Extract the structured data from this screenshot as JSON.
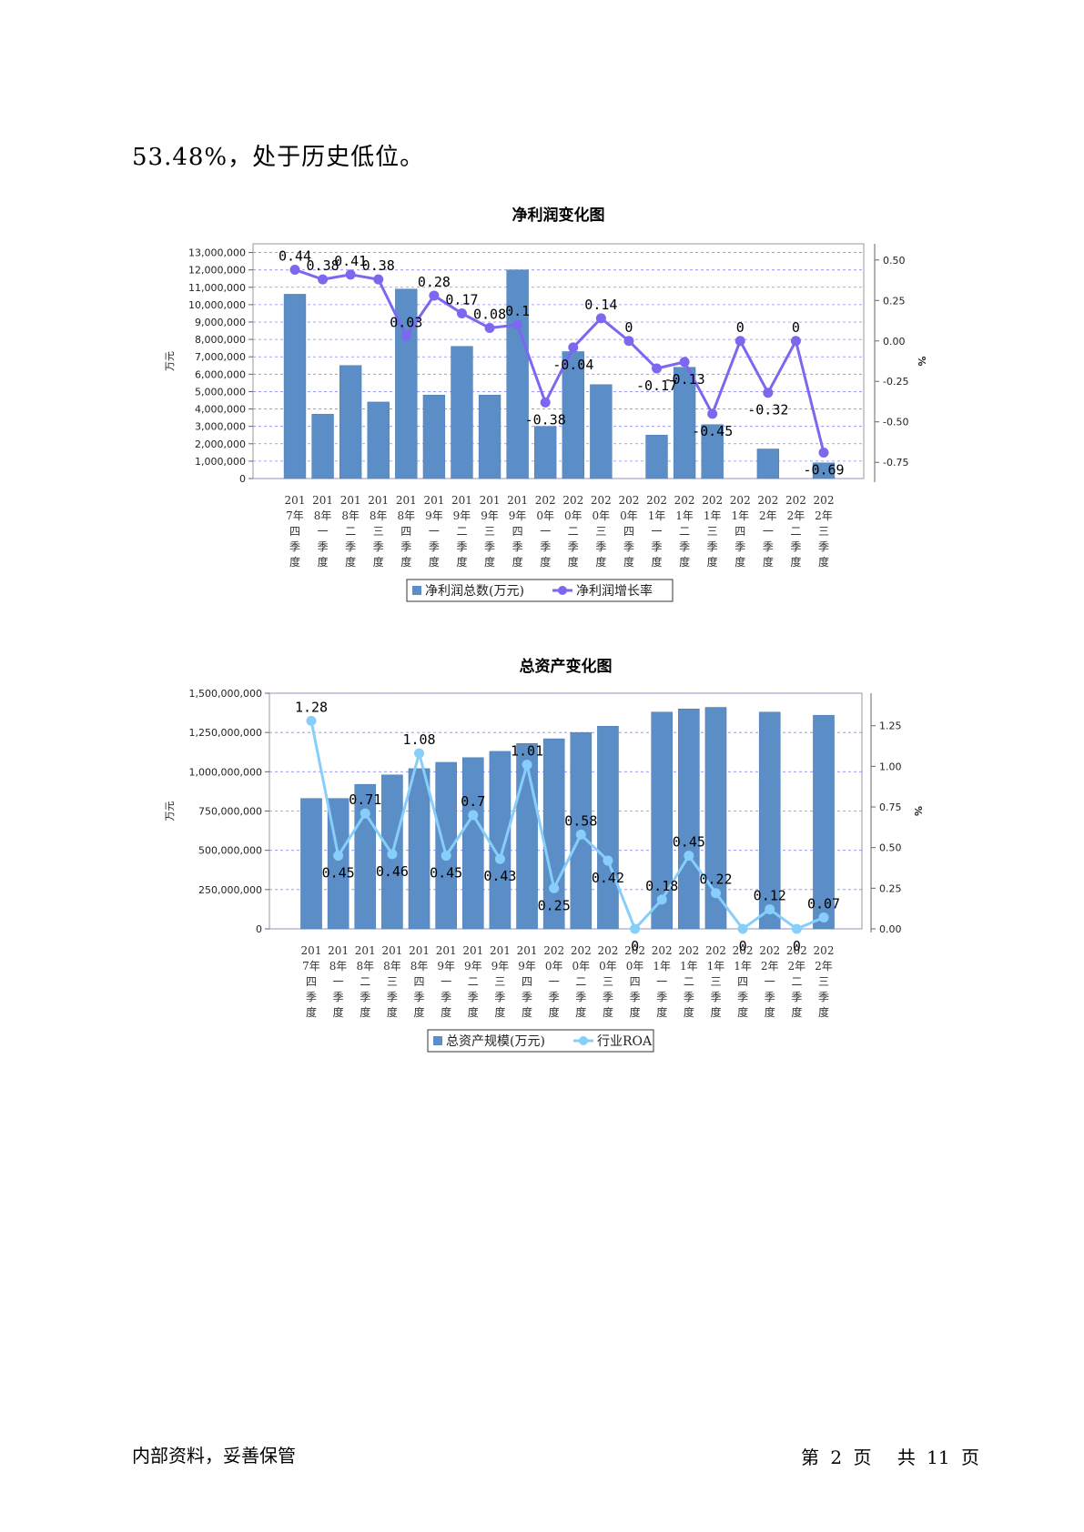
{
  "intro_text": "53.48%，处于历史低位。",
  "footer": {
    "left": "内部资料，妥善保管",
    "page_label_1": "第",
    "page_number": "2",
    "page_label_2": "页",
    "total_label_1": "共",
    "total_pages": "11",
    "total_label_2": "页"
  },
  "colors": {
    "bar": "#5b8ec6",
    "line1": "#7b68ee",
    "line2": "#87cefa",
    "grid": "#8a8ae6"
  },
  "chart_data": [
    {
      "type": "bar",
      "title": "净利润变化图",
      "ylabel": "万元",
      "y2label": "%",
      "ylim": [
        0,
        13500000
      ],
      "y2lim": [
        -0.85,
        0.6
      ],
      "yticks": [
        "0",
        "1,000,000",
        "2,000,000",
        "3,000,000",
        "4,000,000",
        "5,000,000",
        "6,000,000",
        "7,000,000",
        "8,000,000",
        "9,000,000",
        "10,000,000",
        "11,000,000",
        "12,000,000",
        "13,000,000"
      ],
      "y2ticks": [
        "-0.75",
        "-0.50",
        "-0.25",
        "0.00",
        "0.25",
        "0.50"
      ],
      "categories": [
        [
          "201",
          "7年",
          "四",
          "季",
          "度"
        ],
        [
          "201",
          "8年",
          "一",
          "季",
          "度"
        ],
        [
          "201",
          "8年",
          "二",
          "季",
          "度"
        ],
        [
          "201",
          "8年",
          "三",
          "季",
          "度"
        ],
        [
          "201",
          "8年",
          "四",
          "季",
          "度"
        ],
        [
          "201",
          "9年",
          "一",
          "季",
          "度"
        ],
        [
          "201",
          "9年",
          "二",
          "季",
          "度"
        ],
        [
          "201",
          "9年",
          "三",
          "季",
          "度"
        ],
        [
          "201",
          "9年",
          "四",
          "季",
          "度"
        ],
        [
          "202",
          "0年",
          "一",
          "季",
          "度"
        ],
        [
          "202",
          "0年",
          "二",
          "季",
          "度"
        ],
        [
          "202",
          "0年",
          "三",
          "季",
          "度"
        ],
        [
          "202",
          "0年",
          "四",
          "季",
          "度"
        ],
        [
          "202",
          "1年",
          "一",
          "季",
          "度"
        ],
        [
          "202",
          "1年",
          "二",
          "季",
          "度"
        ],
        [
          "202",
          "1年",
          "三",
          "季",
          "度"
        ],
        [
          "202",
          "1年",
          "四",
          "季",
          "度"
        ],
        [
          "202",
          "2年",
          "一",
          "季",
          "度"
        ],
        [
          "202",
          "2年",
          "二",
          "季",
          "度"
        ],
        [
          "202",
          "2年",
          "三",
          "季",
          "度"
        ]
      ],
      "legend": [
        "净利润总数(万元)",
        "净利润增长率"
      ],
      "bars": [
        10600000,
        3700000,
        6500000,
        4400000,
        10900000,
        4800000,
        7600000,
        4800000,
        12000000,
        3000000,
        7300000,
        5400000,
        0,
        2500000,
        6400000,
        3100000,
        0,
        1700000,
        0,
        900000
      ],
      "line": [
        0.44,
        0.38,
        0.41,
        0.38,
        0.03,
        0.28,
        0.17,
        0.08,
        0.1,
        -0.38,
        -0.04,
        0.14,
        0,
        -0.17,
        -0.13,
        -0.45,
        0,
        -0.32,
        0,
        -0.69
      ],
      "line_labels": [
        "0.44",
        "0.38",
        "0.41",
        "0.38",
        "0.03",
        "0.28",
        "0.17",
        "0.08",
        "0.1",
        "-0.38",
        "-0.04",
        "0.14",
        "0",
        "-0.17",
        "-0.13",
        "-0.45",
        "0",
        "-0.32",
        "0",
        "-0.69"
      ]
    },
    {
      "type": "bar",
      "title": "总资产变化图",
      "ylabel": "万元",
      "y2label": "%",
      "ylim": [
        0,
        1500000000
      ],
      "y2lim": [
        0,
        1.45
      ],
      "yticks": [
        "0",
        "250,000,000",
        "500,000,000",
        "750,000,000",
        "1,000,000,000",
        "1,250,000,000",
        "1,500,000,000"
      ],
      "y2ticks": [
        "0.00",
        "0.25",
        "0.50",
        "0.75",
        "1.00",
        "1.25"
      ],
      "categories": [
        [
          "201",
          "7年",
          "四",
          "季",
          "度"
        ],
        [
          "201",
          "8年",
          "一",
          "季",
          "度"
        ],
        [
          "201",
          "8年",
          "二",
          "季",
          "度"
        ],
        [
          "201",
          "8年",
          "三",
          "季",
          "度"
        ],
        [
          "201",
          "8年",
          "四",
          "季",
          "度"
        ],
        [
          "201",
          "9年",
          "一",
          "季",
          "度"
        ],
        [
          "201",
          "9年",
          "二",
          "季",
          "度"
        ],
        [
          "201",
          "9年",
          "三",
          "季",
          "度"
        ],
        [
          "201",
          "9年",
          "四",
          "季",
          "度"
        ],
        [
          "202",
          "0年",
          "一",
          "季",
          "度"
        ],
        [
          "202",
          "0年",
          "二",
          "季",
          "度"
        ],
        [
          "202",
          "0年",
          "三",
          "季",
          "度"
        ],
        [
          "202",
          "0年",
          "四",
          "季",
          "度"
        ],
        [
          "202",
          "1年",
          "一",
          "季",
          "度"
        ],
        [
          "202",
          "1年",
          "二",
          "季",
          "度"
        ],
        [
          "202",
          "1年",
          "三",
          "季",
          "度"
        ],
        [
          "202",
          "1年",
          "四",
          "季",
          "度"
        ],
        [
          "202",
          "2年",
          "一",
          "季",
          "度"
        ],
        [
          "202",
          "2年",
          "二",
          "季",
          "度"
        ],
        [
          "202",
          "2年",
          "三",
          "季",
          "度"
        ]
      ],
      "legend": [
        "总资产规模(万元)",
        "行业ROA"
      ],
      "bars": [
        830000000,
        830000000,
        920000000,
        980000000,
        1020000000,
        1060000000,
        1090000000,
        1130000000,
        1180000000,
        1210000000,
        1250000000,
        1290000000,
        0,
        1380000000,
        1400000000,
        1410000000,
        0,
        1380000000,
        0,
        1360000000
      ],
      "line": [
        1.28,
        0.45,
        0.71,
        0.46,
        1.08,
        0.45,
        0.7,
        0.43,
        1.01,
        0.25,
        0.58,
        0.42,
        0,
        0.18,
        0.45,
        0.22,
        0,
        0.12,
        0,
        0.07
      ],
      "line_labels": [
        "1.28",
        "0.45",
        "0.71",
        "0.46",
        "1.08",
        "0.45",
        "0.7",
        "0.43",
        "1.01",
        "0.25",
        "0.58",
        "0.42",
        "0",
        "0.18",
        "0.45",
        "0.22",
        "0",
        "0.12",
        "0",
        "0.07"
      ]
    }
  ]
}
